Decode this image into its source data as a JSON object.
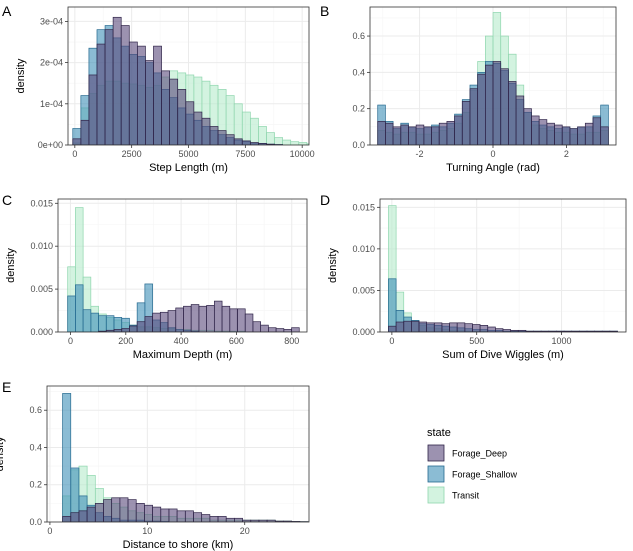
{
  "colors": {
    "Forage_Deep": "#5a4a7c",
    "Forage_Shallow": "#3d8fb8",
    "Transit": "#b6ebcc",
    "Forage_Deep_stroke": "#2f2448",
    "Forage_Shallow_stroke": "#25698f",
    "Transit_stroke": "#8fd6ae",
    "grid_major": "#ebebeb",
    "grid_minor": "#f5f5f5",
    "panel_border": "#333333"
  },
  "legend": {
    "title": "state",
    "items": [
      "Forage_Deep",
      "Forage_Shallow",
      "Transit"
    ]
  },
  "chart_data": [
    {
      "id": "A",
      "type": "bar",
      "panel_letter": "A",
      "xlabel": "Step Length (m)",
      "ylabel": "density",
      "xlim": [
        -300,
        10300
      ],
      "ylim": [
        0,
        0.000335
      ],
      "x_ticks": [
        0,
        2500,
        5000,
        7500,
        10000
      ],
      "x_tick_labels": [
        "0",
        "2500",
        "5000",
        "7500",
        "10000"
      ],
      "y_ticks": [
        0,
        0.0001,
        0.0002,
        0.0003
      ],
      "y_tick_labels": [
        "0e+00",
        "1e-04",
        "2e-04",
        "3e-04"
      ],
      "bin_start": -90,
      "bin_width": 355,
      "series": [
        {
          "name": "Forage_Deep",
          "values": [
            1.5e-05,
            6e-05,
            0.00017,
            0.000245,
            0.00028,
            0.00031,
            0.00029,
            0.00025,
            0.00024,
            0.000205,
            0.00024,
            0.00018,
            0.00016,
            0.000135,
            0.000105,
            8e-05,
            6.5e-05,
            4.5e-05,
            3.5e-05,
            2.5e-05,
            1.5e-05,
            1e-05,
            6e-06,
            4e-06,
            2e-06,
            1e-06,
            0,
            0,
            0,
            0
          ]
        },
        {
          "name": "Forage_Shallow",
          "values": [
            4e-05,
            0.00012,
            0.000235,
            0.00028,
            0.00029,
            0.00026,
            0.00024,
            0.00022,
            0.000215,
            0.0002,
            0.000175,
            0.000135,
            0.000115,
            9e-05,
            7.5e-05,
            6e-05,
            4.5e-05,
            3.5e-05,
            2.5e-05,
            1.8e-05,
            1.2e-05,
            8e-06,
            5e-06,
            3e-06,
            2e-06,
            1e-06,
            0,
            0,
            0,
            0
          ]
        },
        {
          "name": "Transit",
          "values": [
            5e-06,
            9e-05,
            0.000125,
            0.000145,
            0.000155,
            0.000155,
            0.00015,
            0.000148,
            0.000145,
            0.00014,
            0.000145,
            0.000165,
            0.00018,
            0.000175,
            0.00017,
            0.000165,
            0.000155,
            0.000145,
            0.000135,
            0.00012,
            0.0001,
            8e-05,
            6.5e-05,
            4.5e-05,
            3e-05,
            1.8e-05,
            1.2e-05,
            8e-06,
            6e-06,
            3e-06
          ]
        }
      ]
    },
    {
      "id": "B",
      "type": "bar",
      "panel_letter": "B",
      "xlabel": "Turning Angle (rad)",
      "ylabel": "",
      "xlim": [
        -3.35,
        3.35
      ],
      "ylim": [
        0,
        0.76
      ],
      "x_ticks": [
        -2,
        0,
        2
      ],
      "x_tick_labels": [
        "-2",
        "0",
        "2"
      ],
      "y_ticks": [
        0,
        0.2,
        0.4,
        0.6
      ],
      "y_tick_labels": [
        "0.0",
        "0.2",
        "0.4",
        "0.6"
      ],
      "bin_start": -3.14,
      "bin_width": 0.2094,
      "series": [
        {
          "name": "Forage_Deep",
          "values": [
            0.13,
            0.12,
            0.1,
            0.11,
            0.1,
            0.11,
            0.1,
            0.1,
            0.12,
            0.13,
            0.16,
            0.24,
            0.31,
            0.39,
            0.44,
            0.46,
            0.42,
            0.35,
            0.27,
            0.2,
            0.16,
            0.14,
            0.12,
            0.11,
            0.1,
            0.09,
            0.1,
            0.12,
            0.15,
            0.1
          ]
        },
        {
          "name": "Forage_Shallow",
          "values": [
            0.22,
            0.13,
            0.09,
            0.12,
            0.1,
            0.09,
            0.1,
            0.11,
            0.1,
            0.12,
            0.17,
            0.25,
            0.33,
            0.4,
            0.46,
            0.45,
            0.41,
            0.34,
            0.25,
            0.18,
            0.13,
            0.11,
            0.1,
            0.09,
            0.1,
            0.09,
            0.1,
            0.1,
            0.16,
            0.22
          ]
        },
        {
          "name": "Transit",
          "values": [
            0.08,
            0.07,
            0.06,
            0.07,
            0.07,
            0.06,
            0.06,
            0.07,
            0.08,
            0.09,
            0.12,
            0.18,
            0.3,
            0.46,
            0.6,
            0.73,
            0.6,
            0.5,
            0.33,
            0.18,
            0.11,
            0.09,
            0.08,
            0.07,
            0.07,
            0.06,
            0.06,
            0.07,
            0.07,
            0.08
          ]
        }
      ]
    },
    {
      "id": "C",
      "type": "bar",
      "panel_letter": "C",
      "xlabel": "Maximum Depth (m)",
      "ylabel": "density",
      "xlim": [
        -45,
        855
      ],
      "ylim": [
        0,
        0.0155
      ],
      "x_ticks": [
        0,
        200,
        400,
        600,
        800
      ],
      "x_tick_labels": [
        "0",
        "200",
        "400",
        "600",
        "800"
      ],
      "y_ticks": [
        0,
        0.005,
        0.01,
        0.015
      ],
      "y_tick_labels": [
        "0.000",
        "0.005",
        "0.010",
        "0.015"
      ],
      "bin_start": -10,
      "bin_width": 27.9,
      "series": [
        {
          "name": "Forage_Deep",
          "values": [
            0,
            0,
            0,
            0,
            0.0001,
            0.0002,
            0.0003,
            0.0004,
            0.0007,
            0.0012,
            0.0018,
            0.0022,
            0.0023,
            0.0025,
            0.0028,
            0.003,
            0.0032,
            0.003,
            0.0031,
            0.0036,
            0.003,
            0.0027,
            0.0027,
            0.0021,
            0.0012,
            0.0008,
            0.0005,
            0.0004,
            0.0003,
            0.0005
          ]
        },
        {
          "name": "Forage_Shallow",
          "values": [
            0.0042,
            0.0055,
            0.0026,
            0.0022,
            0.0019,
            0.0019,
            0.0017,
            0.0016,
            0.0008,
            0.0034,
            0.0056,
            0.0014,
            0.0011,
            0.0005,
            0.0003,
            0.0002,
            0.0001,
            0,
            0,
            0,
            0,
            0,
            0,
            0,
            0,
            0,
            0,
            0,
            0,
            0
          ]
        },
        {
          "name": "Transit",
          "values": [
            0.0076,
            0.0145,
            0.0064,
            0.003,
            0.0021,
            0.0017,
            0.0014,
            0.0011,
            0.0008,
            0.0006,
            0.0006,
            0.0005,
            0.0004,
            0.0004,
            0.0003,
            0.0003,
            0.0002,
            0.0002,
            0.0002,
            0.0001,
            0.0001,
            0.0001,
            0.0001,
            0,
            0,
            0,
            0,
            0,
            0,
            0
          ]
        }
      ]
    },
    {
      "id": "D",
      "type": "bar",
      "panel_letter": "D",
      "xlabel": "Sum of Dive Wiggles (m)",
      "ylabel": "density",
      "xlim": [
        -70,
        1380
      ],
      "ylim": [
        0,
        0.016
      ],
      "x_ticks": [
        0,
        500,
        1000
      ],
      "x_tick_labels": [
        "0",
        "500",
        "1000"
      ],
      "y_ticks": [
        0,
        0.005,
        0.01,
        0.015
      ],
      "y_tick_labels": [
        "0.000",
        "0.005",
        "0.010",
        "0.015"
      ],
      "bin_start": -20,
      "bin_width": 45,
      "series": [
        {
          "name": "Forage_Deep",
          "values": [
            0.0007,
            0.0012,
            0.0013,
            0.0013,
            0.0012,
            0.0011,
            0.0011,
            0.001,
            0.0011,
            0.0011,
            0.001,
            0.0009,
            0.0008,
            0.0006,
            0.0004,
            0.0003,
            0.0002,
            0.0002,
            0.0001,
            0.0001,
            0.0001,
            0.0001,
            0.0001,
            0.0001,
            0.0001,
            0.0001,
            0.0001,
            0.0001,
            0.0001,
            0.0001
          ]
        },
        {
          "name": "Forage_Shallow",
          "values": [
            0.0064,
            0.0026,
            0.0018,
            0.0014,
            0.001,
            0.0009,
            0.0008,
            0.0007,
            0.0006,
            0.0005,
            0.0004,
            0.0003,
            0.0003,
            0.0002,
            0.0002,
            0.0001,
            0.0001,
            0.0001,
            0.0001,
            0.0001,
            0.0001,
            0.0001,
            0.0001,
            0.0001,
            0.0001,
            0.0001,
            0.0001,
            0.0001,
            0.0001,
            0.0001
          ]
        },
        {
          "name": "Transit",
          "values": [
            0.0152,
            0.0048,
            0.0023,
            0.0013,
            0.0008,
            0.0005,
            0.0004,
            0.0003,
            0.0002,
            0.0002,
            0.0001,
            0.0001,
            0.0001,
            0,
            0,
            0,
            0,
            0,
            0,
            0,
            0,
            0,
            0,
            0,
            0,
            0,
            0,
            0,
            0,
            0
          ]
        }
      ]
    },
    {
      "id": "E",
      "type": "bar",
      "panel_letter": "E",
      "xlabel": "Distance to shore (km)",
      "ylabel": "density",
      "xlim": [
        -0.3,
        26.6
      ],
      "ylim": [
        0,
        0.73
      ],
      "x_ticks": [
        0,
        10,
        20
      ],
      "x_tick_labels": [
        "0",
        "10",
        "20"
      ],
      "y_ticks": [
        0,
        0.2,
        0.4,
        0.6
      ],
      "y_tick_labels": [
        "0.0",
        "0.2",
        "0.4",
        "0.6"
      ],
      "bin_start": 1.3,
      "bin_width": 0.84,
      "series": [
        {
          "name": "Forage_Deep",
          "values": [
            0.03,
            0.05,
            0.06,
            0.08,
            0.1,
            0.12,
            0.13,
            0.13,
            0.12,
            0.1,
            0.09,
            0.08,
            0.07,
            0.07,
            0.06,
            0.06,
            0.05,
            0.04,
            0.03,
            0.03,
            0.02,
            0.02,
            0.01,
            0.01,
            0.01,
            0.01,
            0.005,
            0.005,
            0.003,
            0.002
          ]
        },
        {
          "name": "Forage_Shallow",
          "values": [
            0.69,
            0.29,
            0.14,
            0.09,
            0.05,
            0.03,
            0.02,
            0.01,
            0.01,
            0.01,
            0.005,
            0.005,
            0.003,
            0,
            0,
            0,
            0,
            0,
            0,
            0,
            0,
            0,
            0,
            0,
            0,
            0,
            0,
            0,
            0,
            0
          ]
        },
        {
          "name": "Transit",
          "values": [
            0.14,
            0.28,
            0.3,
            0.25,
            0.18,
            0.13,
            0.1,
            0.08,
            0.06,
            0.05,
            0.04,
            0.03,
            0.03,
            0.03,
            0.02,
            0.02,
            0.02,
            0.02,
            0.01,
            0.01,
            0.01,
            0.01,
            0.01,
            0.01,
            0.01,
            0.01,
            0.005,
            0.005,
            0.003,
            0.002
          ]
        }
      ]
    }
  ]
}
